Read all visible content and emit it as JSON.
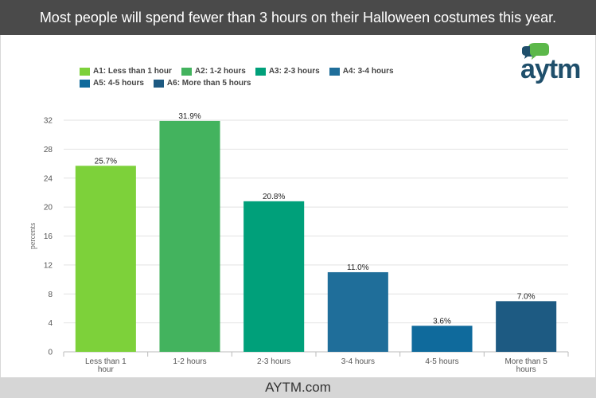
{
  "header": {
    "title": "Most people will spend fewer than 3 hours on their Halloween costumes this year."
  },
  "footer": {
    "site": "AYTM.com"
  },
  "logo": {
    "text": "aytm",
    "icon": "speech-bubble-icon",
    "colors": {
      "dark": "#1f4f6b",
      "green": "#5cb84a"
    }
  },
  "chart_data": {
    "type": "bar",
    "title": "Most people will spend fewer than 3 hours on their Halloween costumes this year.",
    "xlabel": "",
    "ylabel": "percents",
    "ylim": [
      0,
      32
    ],
    "yticks": [
      0,
      4,
      8,
      12,
      16,
      20,
      24,
      28,
      32
    ],
    "grid": true,
    "legend_position": "top",
    "categories": [
      [
        "Less than 1",
        "hour"
      ],
      [
        "1-2 hours"
      ],
      [
        "2-3 hours"
      ],
      [
        "3-4 hours"
      ],
      [
        "4-5 hours"
      ],
      [
        "More than 5",
        "hours"
      ]
    ],
    "values": [
      25.7,
      31.9,
      20.8,
      11.0,
      3.6,
      7.0
    ],
    "value_labels": [
      "25.7%",
      "31.9%",
      "20.8%",
      "11.0%",
      "3.6%",
      "7.0%"
    ],
    "colors": [
      "#7dd13a",
      "#43b35e",
      "#00a07a",
      "#1f6e9a",
      "#0f6a9c",
      "#1d5a82"
    ],
    "legend": [
      {
        "label": "A1: Less than 1 hour",
        "color": "#7dd13a"
      },
      {
        "label": "A2: 1-2 hours",
        "color": "#43b35e"
      },
      {
        "label": "A3: 2-3 hours",
        "color": "#00a07a"
      },
      {
        "label": "A4: 3-4 hours",
        "color": "#1f6e9a"
      },
      {
        "label": "A5: 4-5 hours",
        "color": "#0f6a9c"
      },
      {
        "label": "A6: More than 5 hours",
        "color": "#1d5a82"
      }
    ]
  }
}
